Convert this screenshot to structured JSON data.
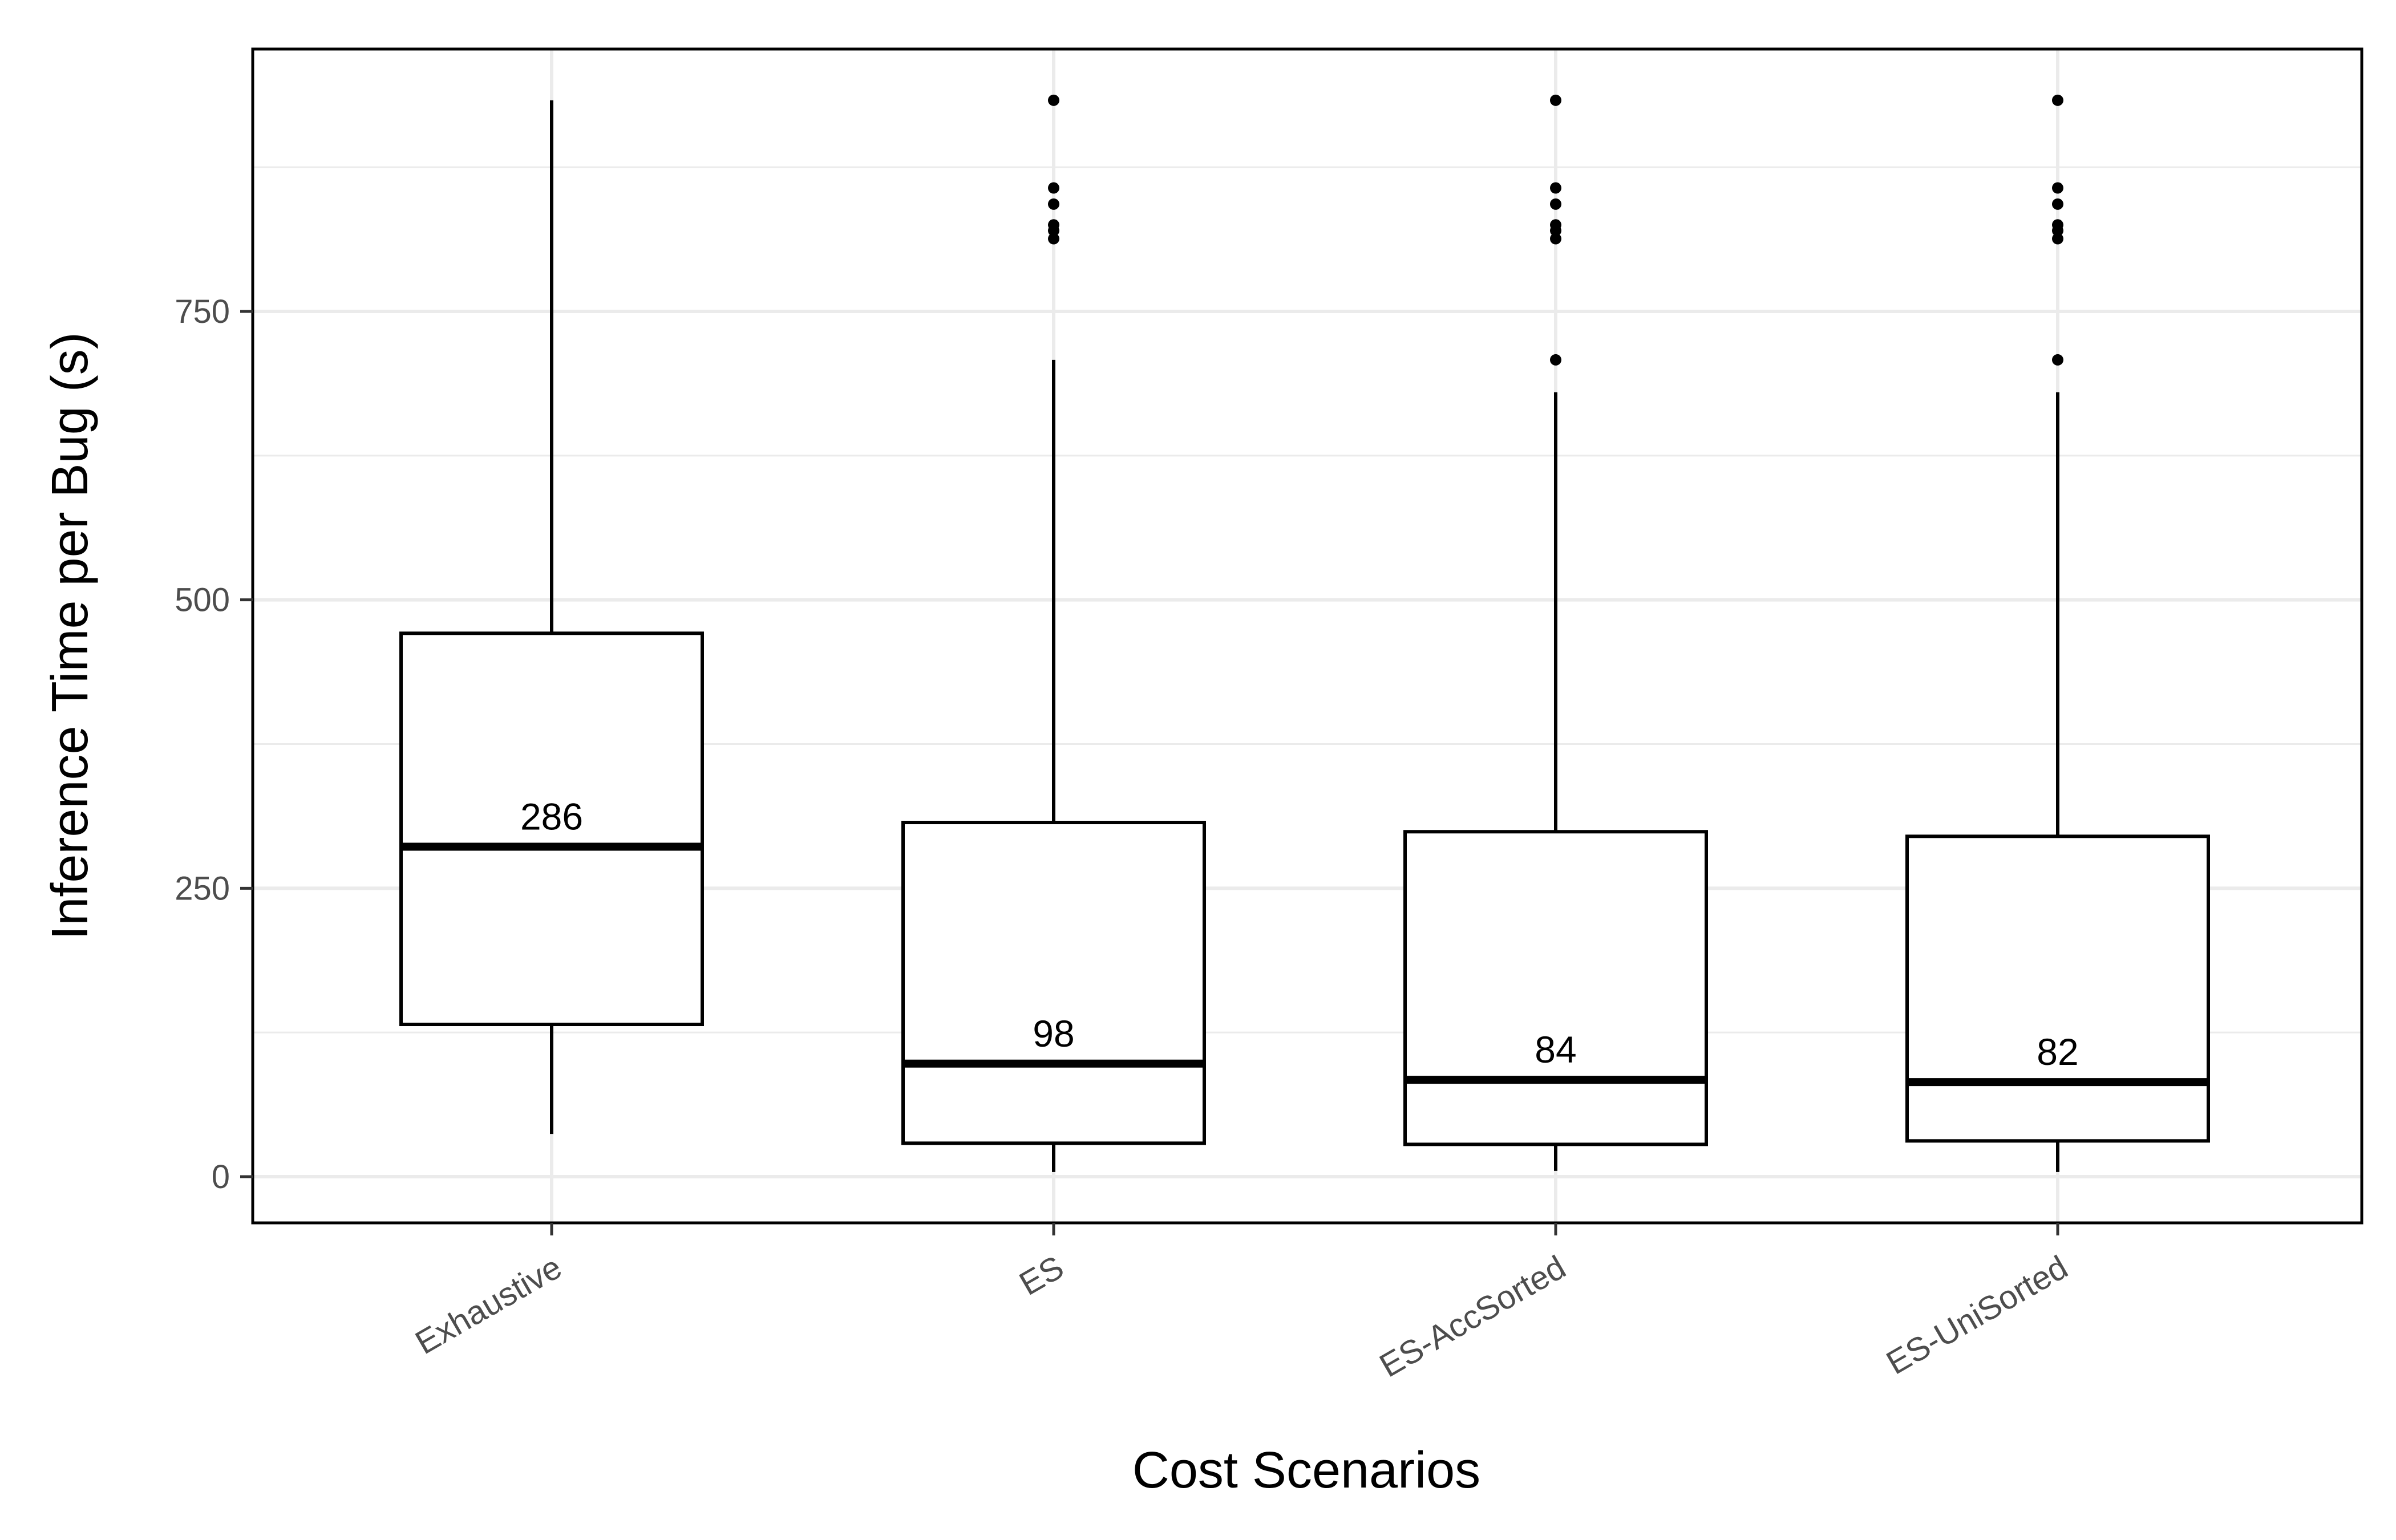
{
  "chart_data": {
    "type": "box",
    "xlabel": "Cost Scenarios",
    "ylabel": "Inference Time per Bug (s)",
    "ylim": [
      -40,
      980
    ],
    "yticks": [
      0,
      250,
      500,
      750
    ],
    "grid": true,
    "categories": [
      "Exhaustive",
      "ES",
      "ES-AccSorted",
      "ES-UniSorted"
    ],
    "boxes": [
      {
        "category": "Exhaustive",
        "whisker_low": 37,
        "q1": 132,
        "median": 286,
        "q3": 471,
        "whisker_high": 933,
        "outliers": [],
        "median_label": "286"
      },
      {
        "category": "ES",
        "whisker_low": 4,
        "q1": 29,
        "median": 98,
        "q3": 307,
        "whisker_high": 708,
        "outliers": [
          933,
          857,
          843,
          825,
          820,
          813
        ],
        "median_label": "98"
      },
      {
        "category": "ES-AccSorted",
        "whisker_low": 5,
        "q1": 28,
        "median": 84,
        "q3": 299,
        "whisker_high": 680,
        "outliers": [
          933,
          857,
          843,
          825,
          820,
          813,
          708
        ],
        "median_label": "84"
      },
      {
        "category": "ES-UniSorted",
        "whisker_low": 4,
        "q1": 31,
        "median": 82,
        "q3": 295,
        "whisker_high": 680,
        "outliers": [
          933,
          857,
          843,
          825,
          820,
          813,
          708
        ],
        "median_label": "82"
      }
    ],
    "colors": {
      "grid": "#ebebeb",
      "box": "#000000",
      "panel_border": "#000000",
      "tick_text": "#4d4d4d"
    }
  }
}
